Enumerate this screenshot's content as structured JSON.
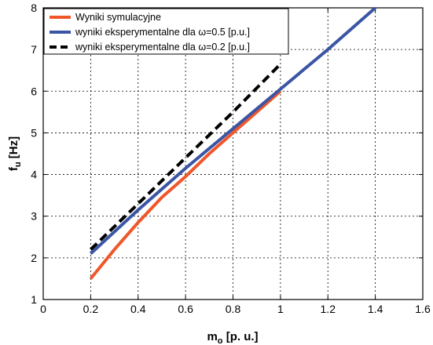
{
  "chart_data": {
    "type": "line",
    "xlim": [
      0,
      1.6
    ],
    "ylim": [
      1,
      8
    ],
    "x_ticks": [
      0,
      0.2,
      0.4,
      0.6,
      0.8,
      1,
      1.2,
      1.4,
      1.6
    ],
    "x_tick_labels": [
      "0",
      "0.2",
      "0.4",
      "0.6",
      "0.8",
      "1",
      "1.2",
      "1.4",
      "1.6"
    ],
    "y_ticks": [
      1,
      2,
      3,
      4,
      5,
      6,
      7,
      8
    ],
    "y_tick_labels": [
      "1",
      "2",
      "3",
      "4",
      "5",
      "6",
      "7",
      "8"
    ],
    "xlabel": {
      "main": "m",
      "sub": "o",
      "rest": " [p. u.]"
    },
    "ylabel": {
      "main": "f",
      "sub": "u",
      "rest": " [Hz]"
    },
    "grid": true,
    "legend_position": "top-left",
    "series": [
      {
        "name": "Wyniki symulacyjne",
        "color": "#f0562a",
        "style": "solid",
        "x": [
          0.2,
          0.3,
          0.4,
          0.5,
          0.6,
          0.7,
          0.8,
          0.9,
          1.0
        ],
        "y": [
          1.5,
          2.2,
          2.85,
          3.45,
          3.95,
          4.5,
          5.0,
          5.5,
          6.0
        ]
      },
      {
        "name": "wyniki eksperymentalne dla ω=0.5 [p.u.]",
        "color": "#3a55a4",
        "style": "solid",
        "x": [
          0.2,
          0.4,
          0.6,
          0.8,
          1.0,
          1.2,
          1.4
        ],
        "y": [
          2.1,
          3.15,
          4.15,
          5.1,
          6.05,
          7.0,
          8.0
        ]
      },
      {
        "name": "wyniki eksperymentalne dla ω=0.2 [p.u.]",
        "color": "#000000",
        "style": "dashed",
        "x": [
          0.2,
          0.4,
          0.6,
          0.8,
          1.0
        ],
        "y": [
          2.2,
          3.3,
          4.4,
          5.5,
          6.65
        ]
      }
    ]
  }
}
